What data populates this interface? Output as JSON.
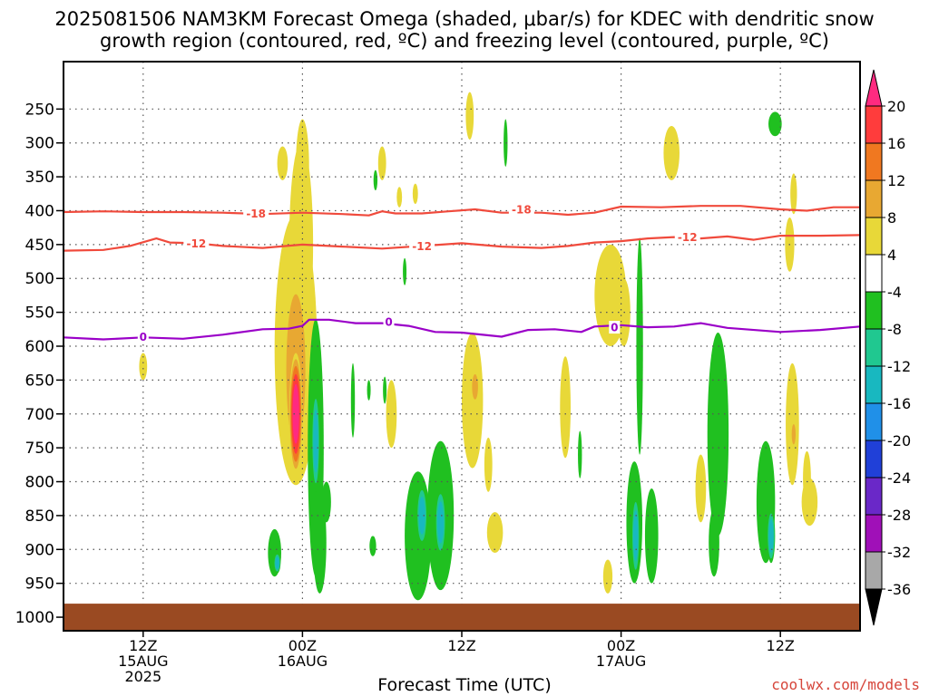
{
  "title_line1": "2025081506 NAM3KM Forecast Omega (shaded, μbar/s) for KDEC with dendritic snow",
  "title_line2": "growth region (contoured, red, ºC) and freezing level (contoured, purple, ºC)",
  "xlabel": "Forecast Time (UTC)",
  "credit": "coolwx.com/models",
  "colors": {
    "dgz": "#f04a3c",
    "freezing": "#9a00c8",
    "ground": "#9a4a22",
    "grid": "#555555"
  },
  "chart_data": {
    "type": "heatmap",
    "x_unit": "forecast hour from 2025081506",
    "xlim": [
      0,
      60
    ],
    "y_unit": "hPa",
    "ylim": [
      1020,
      180
    ],
    "y_ticks": [
      250,
      300,
      350,
      400,
      450,
      500,
      550,
      600,
      650,
      700,
      750,
      800,
      850,
      900,
      950,
      1000
    ],
    "x_ticks": [
      {
        "x": 6,
        "lines": [
          "12Z",
          "15AUG",
          "2025"
        ]
      },
      {
        "x": 18,
        "lines": [
          "00Z",
          "16AUG"
        ]
      },
      {
        "x": 30,
        "lines": [
          "12Z"
        ]
      },
      {
        "x": 42,
        "lines": [
          "00Z",
          "17AUG"
        ]
      },
      {
        "x": 54,
        "lines": [
          "12Z"
        ]
      }
    ],
    "ground_level_hPa": 980,
    "colorbar": {
      "labels": [
        "20",
        "16",
        "12",
        "8",
        "4",
        "-4",
        "-8",
        "-12",
        "-16",
        "-20",
        "-24",
        "-28",
        "-32",
        "-36"
      ],
      "colors": [
        "#ff2a80",
        "#ff3c3c",
        "#f07820",
        "#e8a832",
        "#e8d838",
        "#ffffff",
        "#20c020",
        "#20c890",
        "#18b8c0",
        "#2090e8",
        "#2040d8",
        "#6a28c8",
        "#a010b8",
        "#a8a8a8"
      ]
    },
    "contours": [
      {
        "series": "dgz_-18",
        "label": "-18",
        "label_at": [
          [
            14.5,
            404
          ],
          [
            34.5,
            398
          ]
        ],
        "points": [
          [
            0,
            402
          ],
          [
            3,
            401
          ],
          [
            6,
            402
          ],
          [
            9,
            402
          ],
          [
            12,
            403
          ],
          [
            15,
            405
          ],
          [
            18,
            403
          ],
          [
            21,
            405
          ],
          [
            23,
            407
          ],
          [
            24,
            401
          ],
          [
            25,
            404
          ],
          [
            27,
            404
          ],
          [
            29,
            401
          ],
          [
            31,
            398
          ],
          [
            33,
            403
          ],
          [
            36,
            403
          ],
          [
            38,
            406
          ],
          [
            40,
            403
          ],
          [
            42,
            394
          ],
          [
            45,
            395
          ],
          [
            48,
            393
          ],
          [
            51,
            393
          ],
          [
            54,
            398
          ],
          [
            56,
            400
          ],
          [
            58,
            395
          ],
          [
            60,
            395
          ]
        ]
      },
      {
        "series": "dgz_-12",
        "label": "-12",
        "label_at": [
          [
            10,
            448
          ],
          [
            27,
            452
          ],
          [
            47,
            439
          ]
        ],
        "points": [
          [
            0,
            459
          ],
          [
            3,
            458
          ],
          [
            5,
            452
          ],
          [
            7,
            441
          ],
          [
            8,
            447
          ],
          [
            10,
            448
          ],
          [
            12,
            452
          ],
          [
            15,
            455
          ],
          [
            18,
            450
          ],
          [
            21,
            453
          ],
          [
            24,
            456
          ],
          [
            27,
            452
          ],
          [
            30,
            448
          ],
          [
            33,
            453
          ],
          [
            36,
            455
          ],
          [
            38,
            452
          ],
          [
            40,
            447
          ],
          [
            42,
            445
          ],
          [
            44,
            441
          ],
          [
            46,
            439
          ],
          [
            48,
            441
          ],
          [
            50,
            438
          ],
          [
            52,
            443
          ],
          [
            54,
            437
          ],
          [
            57,
            437
          ],
          [
            60,
            436
          ]
        ]
      },
      {
        "series": "freezing_0",
        "label": "0",
        "label_at": [
          [
            6,
            586
          ],
          [
            24.5,
            564
          ],
          [
            41.5,
            572
          ]
        ],
        "points": [
          [
            0,
            587
          ],
          [
            3,
            590
          ],
          [
            6,
            587
          ],
          [
            9,
            589
          ],
          [
            12,
            583
          ],
          [
            15,
            575
          ],
          [
            17,
            574
          ],
          [
            18,
            570
          ],
          [
            18.5,
            561
          ],
          [
            20,
            561
          ],
          [
            22,
            566
          ],
          [
            24,
            566
          ],
          [
            26,
            570
          ],
          [
            28,
            579
          ],
          [
            30,
            580
          ],
          [
            33,
            586
          ],
          [
            35,
            576
          ],
          [
            37,
            575
          ],
          [
            39,
            579
          ],
          [
            40,
            571
          ],
          [
            42,
            569
          ],
          [
            44,
            572
          ],
          [
            46,
            571
          ],
          [
            48,
            566
          ],
          [
            50,
            573
          ],
          [
            54,
            579
          ],
          [
            57,
            576
          ],
          [
            60,
            571
          ]
        ]
      }
    ],
    "blobs": [
      {
        "x": 17.5,
        "p": 605,
        "wx": 1.6,
        "wp": 200,
        "v": 6
      },
      {
        "x": 17.9,
        "p": 450,
        "wx": 0.9,
        "wp": 150,
        "v": 6
      },
      {
        "x": 18.0,
        "p": 335,
        "wx": 0.5,
        "wp": 70,
        "v": 5
      },
      {
        "x": 17.5,
        "p": 635,
        "wx": 0.9,
        "wp": 140,
        "v": 11
      },
      {
        "x": 17.5,
        "p": 700,
        "wx": 0.5,
        "wp": 90,
        "v": 21
      },
      {
        "x": 16.5,
        "p": 330,
        "wx": 0.4,
        "wp": 25,
        "v": 5
      },
      {
        "x": 30.8,
        "p": 680,
        "wx": 0.8,
        "wp": 100,
        "v": 5
      },
      {
        "x": 31.0,
        "p": 660,
        "wx": 0.3,
        "wp": 25,
        "v": 9
      },
      {
        "x": 30.6,
        "p": 260,
        "wx": 0.3,
        "wp": 35,
        "v": 5
      },
      {
        "x": 24.7,
        "p": 700,
        "wx": 0.4,
        "wp": 50,
        "v": 5
      },
      {
        "x": 24.0,
        "p": 330,
        "wx": 0.3,
        "wp": 25,
        "v": 5
      },
      {
        "x": 25.3,
        "p": 380,
        "wx": 0.2,
        "wp": 15,
        "v": 5
      },
      {
        "x": 32.0,
        "p": 775,
        "wx": 0.3,
        "wp": 40,
        "v": 5
      },
      {
        "x": 32.5,
        "p": 875,
        "wx": 0.6,
        "wp": 30,
        "v": 5
      },
      {
        "x": 27.3,
        "p": 880,
        "wx": 0.3,
        "wp": 30,
        "v": 5
      },
      {
        "x": 37.8,
        "p": 690,
        "wx": 0.4,
        "wp": 75,
        "v": 5
      },
      {
        "x": 41.2,
        "p": 525,
        "wx": 1.2,
        "wp": 75,
        "v": 5
      },
      {
        "x": 42.2,
        "p": 550,
        "wx": 0.5,
        "wp": 50,
        "v": 5
      },
      {
        "x": 41.0,
        "p": 940,
        "wx": 0.35,
        "wp": 25,
        "v": 5
      },
      {
        "x": 45.8,
        "p": 315,
        "wx": 0.6,
        "wp": 40,
        "v": 5
      },
      {
        "x": 48.0,
        "p": 810,
        "wx": 0.4,
        "wp": 50,
        "v": 5
      },
      {
        "x": 54.7,
        "p": 450,
        "wx": 0.35,
        "wp": 40,
        "v": 5
      },
      {
        "x": 55.0,
        "p": 375,
        "wx": 0.25,
        "wp": 30,
        "v": 5
      },
      {
        "x": 54.9,
        "p": 715,
        "wx": 0.5,
        "wp": 90,
        "v": 5
      },
      {
        "x": 55.0,
        "p": 730,
        "wx": 0.2,
        "wp": 20,
        "v": 9
      },
      {
        "x": 56.2,
        "p": 830,
        "wx": 0.6,
        "wp": 35,
        "v": 5
      },
      {
        "x": 56.0,
        "p": 795,
        "wx": 0.3,
        "wp": 40,
        "v": 5
      },
      {
        "x": 6.0,
        "p": 630,
        "wx": 0.3,
        "wp": 20,
        "v": 5
      },
      {
        "x": 26.5,
        "p": 375,
        "wx": 0.2,
        "wp": 15,
        "v": 5
      },
      {
        "x": 19.0,
        "p": 750,
        "wx": 0.6,
        "wp": 190,
        "v": -6
      },
      {
        "x": 19.0,
        "p": 740,
        "wx": 0.3,
        "wp": 75,
        "v": -13
      },
      {
        "x": 19.3,
        "p": 890,
        "wx": 0.5,
        "wp": 75,
        "v": -6
      },
      {
        "x": 19.8,
        "p": 830,
        "wx": 0.35,
        "wp": 30,
        "v": -6
      },
      {
        "x": 15.9,
        "p": 905,
        "wx": 0.5,
        "wp": 35,
        "v": -6
      },
      {
        "x": 16.1,
        "p": 920,
        "wx": 0.25,
        "wp": 15,
        "v": -13
      },
      {
        "x": 26.7,
        "p": 880,
        "wx": 1.0,
        "wp": 95,
        "v": -6
      },
      {
        "x": 28.4,
        "p": 850,
        "wx": 1.0,
        "wp": 110,
        "v": -6
      },
      {
        "x": 27.0,
        "p": 850,
        "wx": 0.4,
        "wp": 45,
        "v": -13
      },
      {
        "x": 28.4,
        "p": 860,
        "wx": 0.4,
        "wp": 50,
        "v": -13
      },
      {
        "x": 43.0,
        "p": 860,
        "wx": 0.6,
        "wp": 90,
        "v": -6
      },
      {
        "x": 43.4,
        "p": 600,
        "wx": 0.25,
        "wp": 160,
        "v": -6
      },
      {
        "x": 43.1,
        "p": 880,
        "wx": 0.3,
        "wp": 60,
        "v": -13
      },
      {
        "x": 44.3,
        "p": 880,
        "wx": 0.5,
        "wp": 70,
        "v": -6
      },
      {
        "x": 49.3,
        "p": 730,
        "wx": 0.8,
        "wp": 150,
        "v": -6
      },
      {
        "x": 49.0,
        "p": 890,
        "wx": 0.4,
        "wp": 50,
        "v": -6
      },
      {
        "x": 52.9,
        "p": 830,
        "wx": 0.7,
        "wp": 90,
        "v": -6
      },
      {
        "x": 53.3,
        "p": 880,
        "wx": 0.3,
        "wp": 40,
        "v": -13
      },
      {
        "x": 33.3,
        "p": 300,
        "wx": 0.15,
        "wp": 35,
        "v": -6
      },
      {
        "x": 21.8,
        "p": 680,
        "wx": 0.15,
        "wp": 55,
        "v": -6
      },
      {
        "x": 23.0,
        "p": 665,
        "wx": 0.12,
        "wp": 15,
        "v": -6
      },
      {
        "x": 24.2,
        "p": 665,
        "wx": 0.12,
        "wp": 20,
        "v": -6
      },
      {
        "x": 23.5,
        "p": 355,
        "wx": 0.15,
        "wp": 15,
        "v": -6
      },
      {
        "x": 23.3,
        "p": 895,
        "wx": 0.25,
        "wp": 15,
        "v": -6
      },
      {
        "x": 25.7,
        "p": 490,
        "wx": 0.12,
        "wp": 20,
        "v": -6
      },
      {
        "x": 38.9,
        "p": 760,
        "wx": 0.15,
        "wp": 35,
        "v": -6
      },
      {
        "x": 53.6,
        "p": 272,
        "wx": 0.5,
        "wp": 18,
        "v": -6
      }
    ]
  }
}
